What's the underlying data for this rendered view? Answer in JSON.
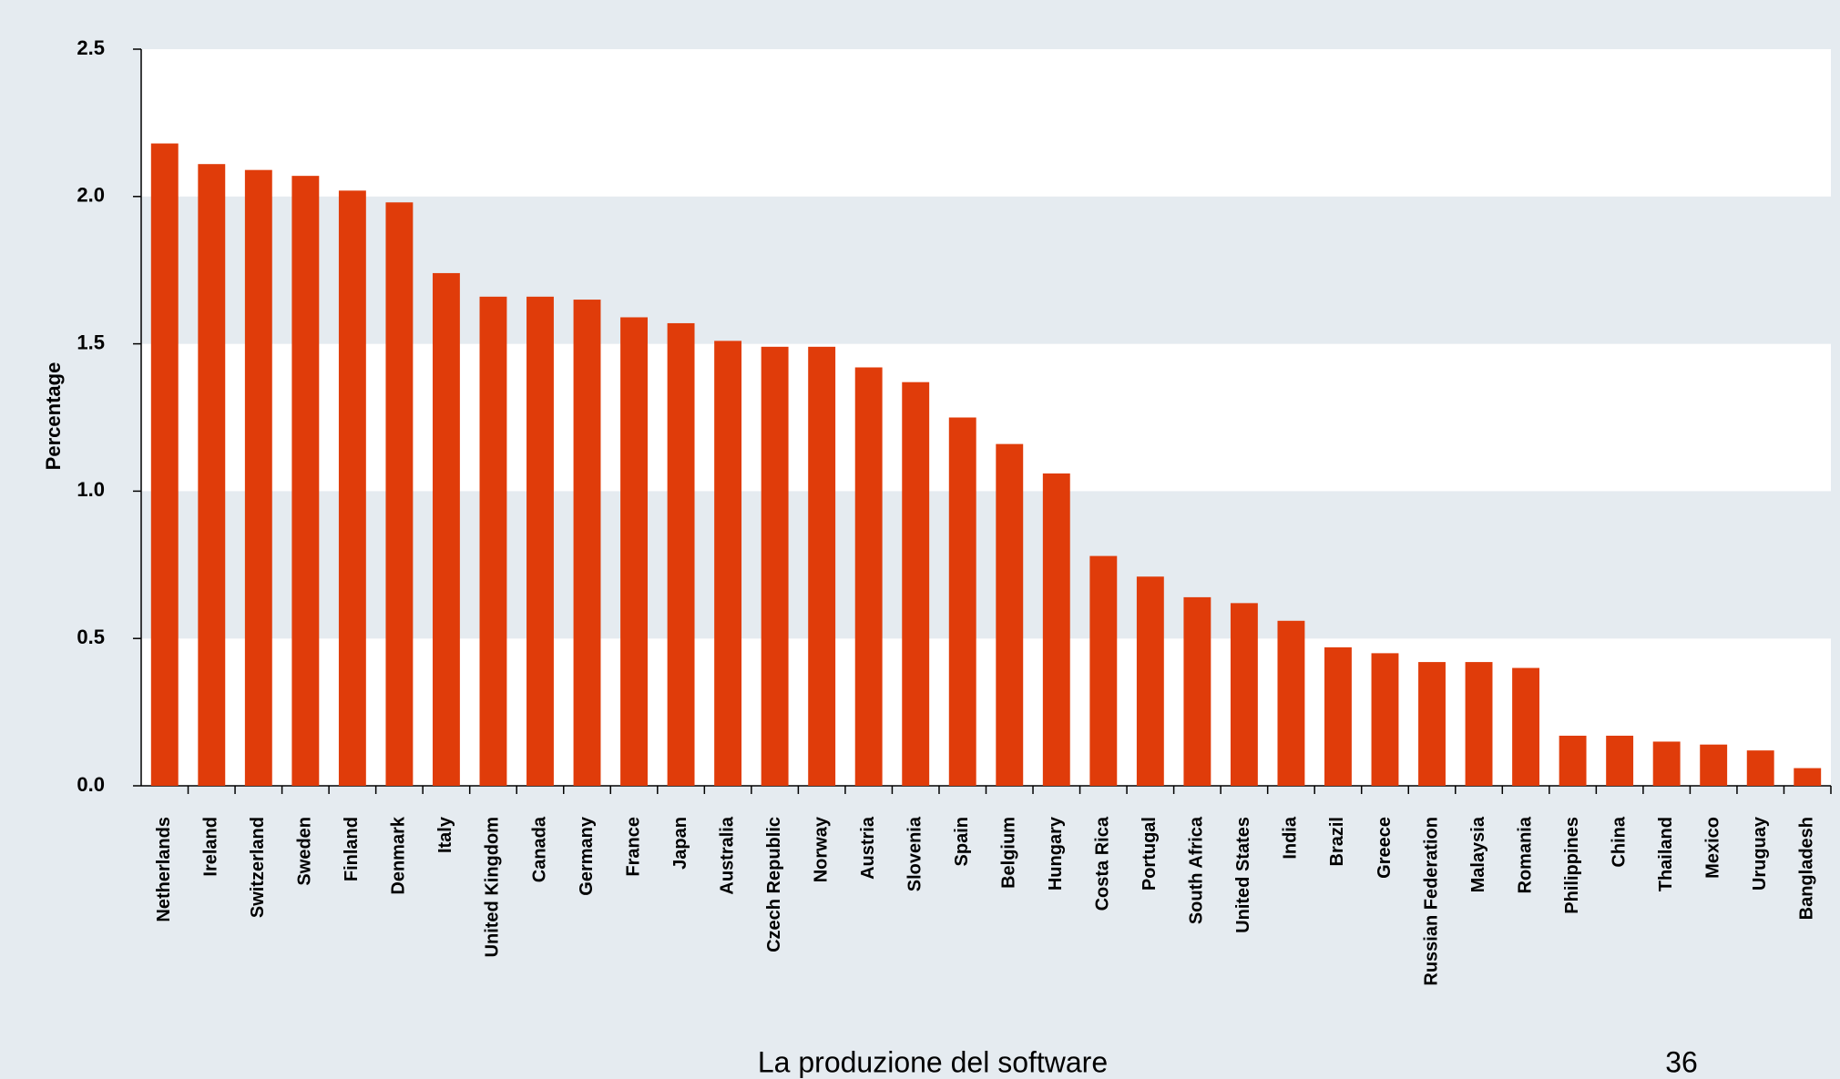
{
  "chart_data": {
    "type": "bar",
    "y_label": "Percentage",
    "categories": [
      "Netherlands",
      "Ireland",
      "Switzerland",
      "Sweden",
      "Finland",
      "Denmark",
      "Italy",
      "United Kingdom",
      "Canada",
      "Germany",
      "France",
      "Japan",
      "Australia",
      "Czech Republic",
      "Norway",
      "Austria",
      "Slovenia",
      "Spain",
      "Belgium",
      "Hungary",
      "Costa Rica",
      "Portugal",
      "South Africa",
      "United States",
      "India",
      "Brazil",
      "Greece",
      "Russian Federation",
      "Malaysia",
      "Romania",
      "Philippines",
      "China",
      "Thailand",
      "Mexico",
      "Uruguay",
      "Bangladesh"
    ],
    "values": [
      2.18,
      2.11,
      2.09,
      2.07,
      2.02,
      1.98,
      1.74,
      1.66,
      1.66,
      1.65,
      1.59,
      1.57,
      1.51,
      1.49,
      1.49,
      1.42,
      1.37,
      1.25,
      1.16,
      1.06,
      0.78,
      0.71,
      0.64,
      0.62,
      0.56,
      0.47,
      0.45,
      0.42,
      0.42,
      0.4,
      0.17,
      0.17,
      0.15,
      0.14,
      0.12,
      0.06
    ],
    "color": "#e03c0a",
    "ylim": [
      0,
      2.5
    ],
    "yticks": [
      {
        "value": 0,
        "label": "0.0"
      },
      0.5,
      {
        "value": 1,
        "label": "1.0"
      },
      1.5,
      {
        "value": 2,
        "label": "2.0"
      },
      2.5
    ],
    "grid": true
  },
  "footer": {
    "text": "La produzione del software",
    "page": "36"
  }
}
